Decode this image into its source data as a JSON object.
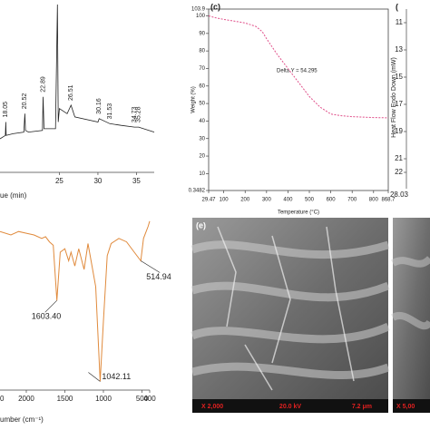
{
  "chart_data": [
    {
      "type": "line",
      "x_label": "ue (min)",
      "xlim": [
        17.3,
        37.3
      ],
      "xticks": [
        25,
        30,
        35
      ],
      "ylim": [
        0,
        100
      ],
      "series": [
        {
          "color": "#222222",
          "x": [
            17.3,
            18.0,
            18.05,
            18.1,
            19.0,
            20.4,
            20.52,
            20.6,
            21.0,
            22.8,
            22.89,
            23.0,
            24.5,
            24.75,
            24.85,
            25.0,
            26.0,
            26.51,
            27.0,
            30.0,
            30.16,
            31.53,
            33.0,
            34.73,
            35.28,
            37.3
          ],
          "values": [
            20,
            22,
            30,
            22,
            23,
            24,
            35,
            25,
            24,
            25,
            45,
            26,
            26,
            100,
            30,
            38,
            35,
            40,
            33,
            30,
            32,
            29,
            28,
            27,
            27,
            24
          ]
        }
      ],
      "annotations": [
        {
          "label": "18.05",
          "x": 18.05,
          "y": 30
        },
        {
          "label": "20.52",
          "x": 20.52,
          "y": 35
        },
        {
          "label": "22.89",
          "x": 22.89,
          "y": 45
        },
        {
          "label": "26.51",
          "x": 26.51,
          "y": 40
        },
        {
          "label": "30.16",
          "x": 30.16,
          "y": 32
        },
        {
          "label": "31.53",
          "x": 31.53,
          "y": 29
        },
        {
          "label": "34.73",
          "x": 34.73,
          "y": 27
        },
        {
          "label": "35.28",
          "x": 35.28,
          "y": 27
        }
      ]
    },
    {
      "type": "line",
      "title": "(c)",
      "x_label": "Temperature (°C)",
      "y_label": "Weight (%)",
      "annotation": "Delta Y = 54.295",
      "xlim": [
        29.47,
        868.7
      ],
      "xticks": [
        29.47,
        100,
        200,
        300,
        400,
        500,
        600,
        700,
        800,
        868.7
      ],
      "ylim": [
        0.3482,
        103.9
      ],
      "yticks": [
        0.3482,
        10,
        20,
        30,
        40,
        50,
        60,
        70,
        80,
        90,
        100,
        103.9
      ],
      "series": [
        {
          "color": "#e0508a",
          "dashed": true,
          "x": [
            29.47,
            60,
            100,
            150,
            200,
            250,
            280,
            300,
            350,
            400,
            450,
            500,
            550,
            600,
            650,
            700,
            800,
            868.7
          ],
          "values": [
            100,
            99,
            98,
            97,
            96,
            94,
            91,
            87,
            78,
            70,
            62,
            54,
            48,
            44,
            43,
            42.5,
            42,
            41.8
          ]
        }
      ]
    },
    {
      "type": "line",
      "x_label": "umber (cm⁻¹)",
      "clipped_tick_text": "0",
      "xlim": [
        2341,
        400
      ],
      "xticks": [
        2000,
        1500,
        1000,
        500,
        400
      ],
      "ylim": [
        0,
        100
      ],
      "series": [
        {
          "color": "#e08a3c",
          "x": [
            2341,
            2200,
            2100,
            2000,
            1900,
            1800,
            1750,
            1700,
            1650,
            1603.4,
            1560,
            1500,
            1450,
            1420,
            1370,
            1320,
            1250,
            1200,
            1160,
            1100,
            1042.11,
            1000,
            950,
            900,
            800,
            700,
            600,
            514.94,
            480,
            420,
            400
          ],
          "values": [
            92,
            90,
            92,
            91,
            90,
            88,
            89,
            86,
            84,
            52,
            80,
            82,
            75,
            80,
            72,
            82,
            70,
            85,
            75,
            60,
            5,
            40,
            78,
            85,
            88,
            86,
            80,
            75,
            88,
            95,
            98
          ]
        }
      ],
      "annotations": [
        {
          "label": "1603.40",
          "x": 1603.4,
          "y": 52
        },
        {
          "label": "1042.11",
          "x": 1042.11,
          "y": 5
        },
        {
          "label": "514.94",
          "x": 514.94,
          "y": 75
        }
      ]
    },
    {
      "type": "axes",
      "title": "(",
      "y_label": "Heat Flow Endo Down (mW)",
      "y_inverted": true,
      "ylim": [
        10,
        23
      ],
      "yticks": [
        11,
        13,
        15,
        17,
        19,
        21,
        22
      ],
      "xlim": [
        28.03,
        60
      ],
      "xticks": [
        28.03
      ]
    }
  ],
  "images": [
    {
      "label": "(e)",
      "scale_bar": [
        "X 2,000",
        "20.0 kV",
        "7.2 μm"
      ]
    },
    {
      "scale_bar": [
        "X 5,00"
      ]
    }
  ]
}
